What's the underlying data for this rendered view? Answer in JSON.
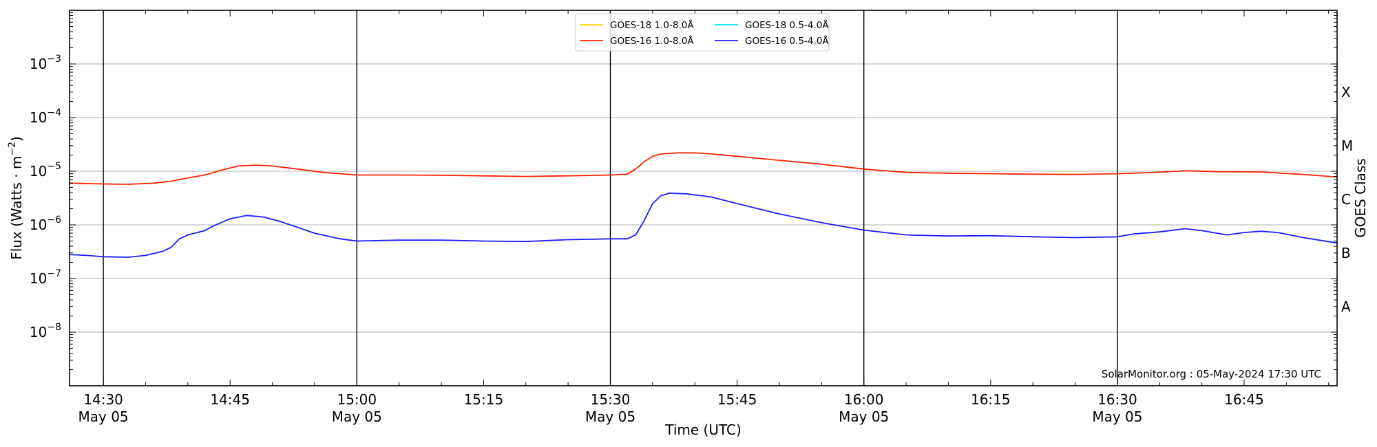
{
  "chart_data": {
    "type": "line",
    "xlabel": "Time (UTC)",
    "ylabel_parts": [
      "Flux (Watts · m",
      "−2",
      ")"
    ],
    "y2label": "GOES Class",
    "y_scale": "log",
    "ylim_exponent": [
      -9,
      -2
    ],
    "grid": "horizontal at each decade",
    "legend_placement": "upper-center",
    "credit": "SolarMonitor.org : 05-May-2024 17:30 UTC",
    "x_range": [
      "14:26",
      "16:56"
    ],
    "x_ticks": [
      {
        "time": "14:30",
        "date": "May 05"
      },
      {
        "time": "14:45",
        "date": ""
      },
      {
        "time": "15:00",
        "date": "May 05"
      },
      {
        "time": "15:15",
        "date": ""
      },
      {
        "time": "15:30",
        "date": "May 05"
      },
      {
        "time": "15:45",
        "date": ""
      },
      {
        "time": "16:00",
        "date": "May 05"
      },
      {
        "time": "16:15",
        "date": ""
      },
      {
        "time": "16:30",
        "date": "May 05"
      },
      {
        "time": "16:45",
        "date": ""
      }
    ],
    "day_marker_times": [
      "14:30",
      "15:00",
      "15:30",
      "16:00",
      "16:30"
    ],
    "y_ticks": [
      {
        "base": "10",
        "exp": "−8",
        "value": 1e-08
      },
      {
        "base": "10",
        "exp": "−7",
        "value": 1e-07
      },
      {
        "base": "10",
        "exp": "−6",
        "value": 1e-06
      },
      {
        "base": "10",
        "exp": "−5",
        "value": 1e-05
      },
      {
        "base": "10",
        "exp": "−4",
        "value": 0.0001
      },
      {
        "base": "10",
        "exp": "−3",
        "value": 0.001
      }
    ],
    "goes_classes": [
      {
        "label": "A",
        "value": 3e-08
      },
      {
        "label": "B",
        "value": 3e-07
      },
      {
        "label": "C",
        "value": 3e-06
      },
      {
        "label": "M",
        "value": 3e-05
      },
      {
        "label": "X",
        "value": 0.0003
      }
    ],
    "series": [
      {
        "name": "GOES-18 1.0-8.0Å",
        "color": "#ffd700",
        "points": []
      },
      {
        "name": "GOES-18 0.5-4.0Å",
        "color": "#00e5ee",
        "points": []
      },
      {
        "name": "GOES-16 1.0-8.0Å",
        "color": "#ff2200",
        "points": [
          [
            "14:26",
            6e-06
          ],
          [
            "14:30",
            5.8e-06
          ],
          [
            "14:33",
            5.7e-06
          ],
          [
            "14:36",
            6e-06
          ],
          [
            "14:38",
            6.5e-06
          ],
          [
            "14:40",
            7.5e-06
          ],
          [
            "14:42",
            8.5e-06
          ],
          [
            "14:44",
            1.05e-05
          ],
          [
            "14:46",
            1.25e-05
          ],
          [
            "14:48",
            1.3e-05
          ],
          [
            "14:50",
            1.25e-05
          ],
          [
            "14:53",
            1.1e-05
          ],
          [
            "14:56",
            9.5e-06
          ],
          [
            "15:00",
            8.5e-06
          ],
          [
            "15:05",
            8.5e-06
          ],
          [
            "15:10",
            8.4e-06
          ],
          [
            "15:15",
            8.2e-06
          ],
          [
            "15:20",
            8e-06
          ],
          [
            "15:25",
            8.2e-06
          ],
          [
            "15:30",
            8.5e-06
          ],
          [
            "15:32",
            8.8e-06
          ],
          [
            "15:33",
            1.1e-05
          ],
          [
            "15:34",
            1.5e-05
          ],
          [
            "15:35",
            1.9e-05
          ],
          [
            "15:36",
            2.1e-05
          ],
          [
            "15:38",
            2.2e-05
          ],
          [
            "15:40",
            2.2e-05
          ],
          [
            "15:42",
            2.1e-05
          ],
          [
            "15:45",
            1.9e-05
          ],
          [
            "15:50",
            1.6e-05
          ],
          [
            "15:55",
            1.35e-05
          ],
          [
            "16:00",
            1.1e-05
          ],
          [
            "16:05",
            9.5e-06
          ],
          [
            "16:10",
            9.2e-06
          ],
          [
            "16:15",
            9e-06
          ],
          [
            "16:20",
            8.8e-06
          ],
          [
            "16:25",
            8.7e-06
          ],
          [
            "16:30",
            9e-06
          ],
          [
            "16:35",
            9.6e-06
          ],
          [
            "16:38",
            1.02e-05
          ],
          [
            "16:42",
            9.8e-06
          ],
          [
            "16:47",
            9.7e-06
          ],
          [
            "16:52",
            8.7e-06
          ],
          [
            "16:56",
            7.8e-06
          ]
        ]
      },
      {
        "name": "GOES-16 0.5-4.0Å",
        "color": "#1a1aff",
        "points": [
          [
            "14:26",
            2.8e-07
          ],
          [
            "14:28",
            2.7e-07
          ],
          [
            "14:30",
            2.55e-07
          ],
          [
            "14:33",
            2.5e-07
          ],
          [
            "14:35",
            2.7e-07
          ],
          [
            "14:37",
            3.2e-07
          ],
          [
            "14:38",
            3.8e-07
          ],
          [
            "14:39",
            5.5e-07
          ],
          [
            "14:40",
            6.5e-07
          ],
          [
            "14:42",
            7.8e-07
          ],
          [
            "14:43",
            9.5e-07
          ],
          [
            "14:45",
            1.3e-06
          ],
          [
            "14:47",
            1.5e-06
          ],
          [
            "14:49",
            1.4e-06
          ],
          [
            "14:51",
            1.15e-06
          ],
          [
            "14:53",
            9e-07
          ],
          [
            "14:55",
            7e-07
          ],
          [
            "14:58",
            5.5e-07
          ],
          [
            "15:00",
            5e-07
          ],
          [
            "15:05",
            5.2e-07
          ],
          [
            "15:10",
            5.2e-07
          ],
          [
            "15:15",
            5e-07
          ],
          [
            "15:20",
            4.9e-07
          ],
          [
            "15:25",
            5.3e-07
          ],
          [
            "15:30",
            5.5e-07
          ],
          [
            "15:32",
            5.5e-07
          ],
          [
            "15:33",
            6.5e-07
          ],
          [
            "15:34",
            1.2e-06
          ],
          [
            "15:35",
            2.5e-06
          ],
          [
            "15:36",
            3.5e-06
          ],
          [
            "15:37",
            3.9e-06
          ],
          [
            "15:39",
            3.8e-06
          ],
          [
            "15:42",
            3.3e-06
          ],
          [
            "15:45",
            2.5e-06
          ],
          [
            "15:50",
            1.6e-06
          ],
          [
            "15:55",
            1.1e-06
          ],
          [
            "16:00",
            8e-07
          ],
          [
            "16:05",
            6.5e-07
          ],
          [
            "16:10",
            6.2e-07
          ],
          [
            "16:15",
            6.3e-07
          ],
          [
            "16:20",
            6e-07
          ],
          [
            "16:25",
            5.8e-07
          ],
          [
            "16:30",
            6e-07
          ],
          [
            "16:32",
            6.8e-07
          ],
          [
            "16:35",
            7.4e-07
          ],
          [
            "16:38",
            8.5e-07
          ],
          [
            "16:40",
            7.8e-07
          ],
          [
            "16:43",
            6.5e-07
          ],
          [
            "16:45",
            7.2e-07
          ],
          [
            "16:47",
            7.6e-07
          ],
          [
            "16:49",
            7.2e-07
          ],
          [
            "16:52",
            5.8e-07
          ],
          [
            "16:56",
            4.6e-07
          ]
        ]
      }
    ],
    "legend_order": [
      0,
      2,
      1,
      3
    ]
  }
}
